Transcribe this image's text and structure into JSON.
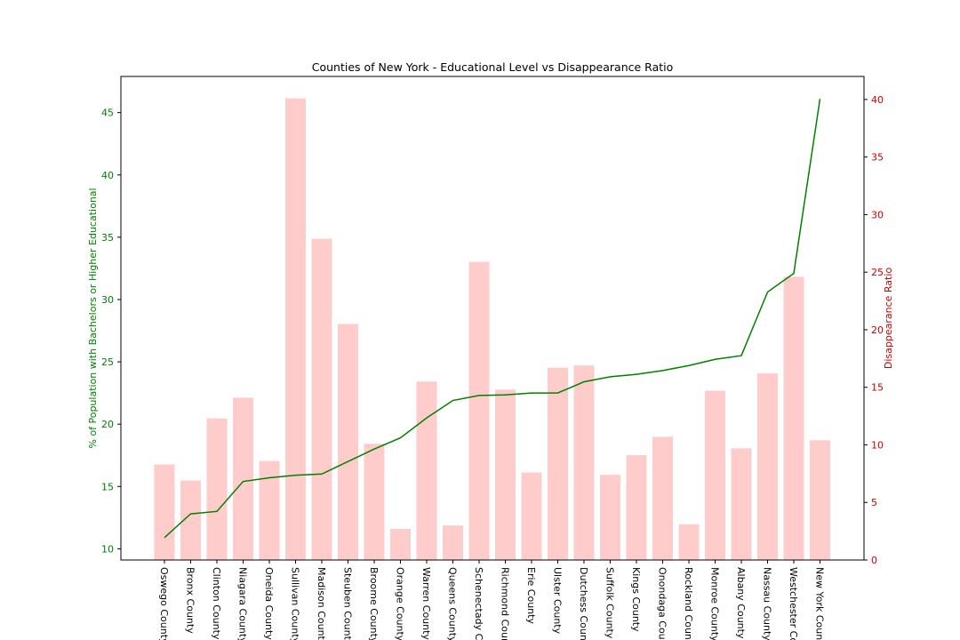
{
  "chart_data": {
    "type": "bar+line",
    "title": "Counties of New York - Educational Level vs Disappearance Ratio",
    "categories": [
      "Oswego County",
      "Bronx County",
      "Clinton County",
      "Niagara County",
      "Oneida County",
      "Sullivan County",
      "Madison County",
      "Steuben County",
      "Broome County",
      "Orange County",
      "Warren County",
      "Queens County",
      "Schenectady County",
      "Richmond County",
      "Erie County",
      "Ulster County",
      "Dutchess County",
      "Suffolk County",
      "Kings County",
      "Onondaga County",
      "Rockland County",
      "Monroe County",
      "Albany County",
      "Nassau County",
      "Westchester County",
      "New York County"
    ],
    "line_series": {
      "axis": "left",
      "color": "#008000",
      "ylabel": "% of Population with Bachelors or Higher Educational",
      "ylim": [
        9.1,
        47.9
      ],
      "yticks": [
        10,
        15,
        20,
        25,
        30,
        35,
        40,
        45
      ],
      "values": [
        10.9,
        12.8,
        13.0,
        15.4,
        15.7,
        15.9,
        16.0,
        17.0,
        18.0,
        18.9,
        20.5,
        21.9,
        22.3,
        22.35,
        22.5,
        22.5,
        23.4,
        23.8,
        24.0,
        24.3,
        24.7,
        25.2,
        25.5,
        30.6,
        32.1,
        46.1
      ]
    },
    "bar_series": {
      "axis": "right",
      "color": "#ffcccc",
      "ylabel": "Disappearance Ratio",
      "ylim": [
        0,
        42
      ],
      "yticks": [
        0,
        5,
        10,
        15,
        20,
        25,
        30,
        35,
        40
      ],
      "values": [
        8.3,
        6.9,
        12.3,
        14.1,
        8.6,
        40.1,
        27.9,
        20.5,
        10.1,
        2.7,
        15.5,
        3.0,
        25.9,
        14.8,
        7.6,
        16.7,
        16.9,
        7.4,
        9.1,
        10.7,
        3.1,
        14.7,
        9.7,
        16.2,
        24.6,
        10.4
      ]
    },
    "left_axis_color": "#008000",
    "right_axis_color": "#cc0000",
    "grid": false,
    "xtick_rotation": 90
  }
}
